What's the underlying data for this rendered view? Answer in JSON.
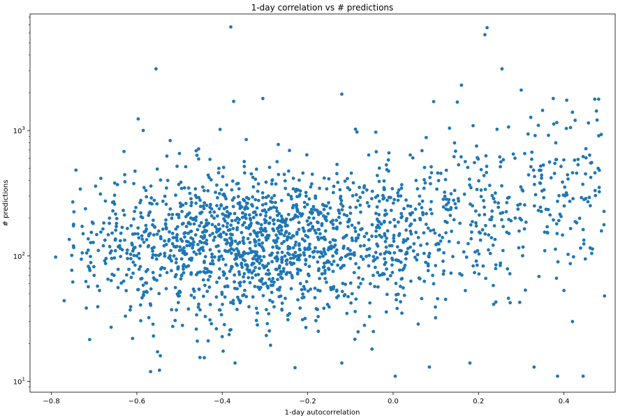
{
  "chart_data": {
    "type": "scatter",
    "title": "1-day correlation vs # predictions",
    "xlabel": "1-day autocorrelation",
    "ylabel": "# predictions",
    "xlim": [
      -0.85,
      0.52
    ],
    "ylim": [
      8.2,
      8500
    ],
    "yscale": "log",
    "grid": false,
    "x_ticks": [
      -0.8,
      -0.6,
      -0.4,
      -0.2,
      0.0,
      0.2,
      0.4
    ],
    "x_tick_labels": [
      "−0.8",
      "−0.6",
      "−0.4",
      "−0.2",
      "0.0",
      "0.2",
      "0.4"
    ],
    "y_ticks": [
      10,
      100,
      1000
    ],
    "y_tick_labels": [
      {
        "base": "10",
        "exp": "1"
      },
      {
        "base": "10",
        "exp": "2"
      },
      {
        "base": "10",
        "exp": "3"
      }
    ],
    "marker_color": "#1f77b4",
    "outlier_points": [
      {
        "x": -0.38,
        "y": 6700
      },
      {
        "x": 0.22,
        "y": 6600
      },
      {
        "x": 0.215,
        "y": 5800
      },
      {
        "x": -0.555,
        "y": 3100
      },
      {
        "x": 0.255,
        "y": 3100
      },
      {
        "x": 0.16,
        "y": 2300
      },
      {
        "x": -0.12,
        "y": 1950
      },
      {
        "x": 0.3,
        "y": 2100
      },
      {
        "x": -0.305,
        "y": 1800
      },
      {
        "x": 0.375,
        "y": 1800
      },
      {
        "x": 0.095,
        "y": 1700
      },
      {
        "x": 0.42,
        "y": 1400
      },
      {
        "x": -0.585,
        "y": 1000
      },
      {
        "x": -0.405,
        "y": 1020
      },
      {
        "x": -0.63,
        "y": 680
      },
      {
        "x": -0.79,
        "y": 98
      },
      {
        "x": -0.77,
        "y": 44
      },
      {
        "x": -0.75,
        "y": 62
      },
      {
        "x": -0.61,
        "y": 22
      },
      {
        "x": -0.545,
        "y": 16
      },
      {
        "x": 0.005,
        "y": 11
      },
      {
        "x": 0.385,
        "y": 11
      },
      {
        "x": 0.445,
        "y": 11
      },
      {
        "x": 0.495,
        "y": 48
      },
      {
        "x": 0.48,
        "y": 500
      },
      {
        "x": 0.42,
        "y": 30
      },
      {
        "x": 0.33,
        "y": 13
      },
      {
        "x": 0.18,
        "y": 14
      },
      {
        "x": -0.37,
        "y": 14
      },
      {
        "x": 0.355,
        "y": 110
      },
      {
        "x": 0.445,
        "y": 620
      },
      {
        "x": 0.34,
        "y": 1100
      },
      {
        "x": 0.37,
        "y": 420
      },
      {
        "x": -0.65,
        "y": 110
      },
      {
        "x": -0.7,
        "y": 70
      },
      {
        "x": -0.66,
        "y": 27
      },
      {
        "x": -0.12,
        "y": 14
      },
      {
        "x": 0.085,
        "y": 13
      },
      {
        "x": 0.27,
        "y": 46
      },
      {
        "x": 0.4,
        "y": 53
      }
    ]
  }
}
